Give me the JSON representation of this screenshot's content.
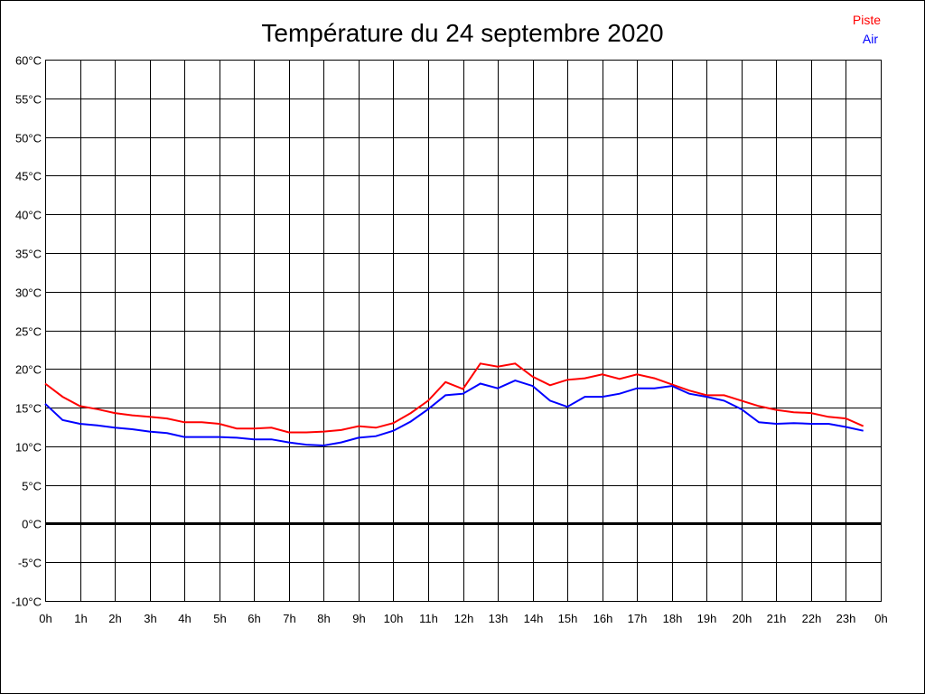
{
  "chart_data": {
    "type": "line",
    "title": "Température du 24 septembre 2020",
    "xlabel": "",
    "ylabel": "",
    "x_tick_labels": [
      "0h",
      "1h",
      "2h",
      "3h",
      "4h",
      "5h",
      "6h",
      "7h",
      "8h",
      "9h",
      "10h",
      "11h",
      "12h",
      "13h",
      "14h",
      "15h",
      "16h",
      "17h",
      "18h",
      "19h",
      "20h",
      "21h",
      "22h",
      "23h",
      "0h"
    ],
    "y_tick_labels": [
      "60°C",
      "55°C",
      "50°C",
      "45°C",
      "40°C",
      "35°C",
      "30°C",
      "25°C",
      "20°C",
      "15°C",
      "10°C",
      "5°C",
      "0°C",
      "-5°C",
      "-10°C"
    ],
    "xlim": [
      0,
      24
    ],
    "ylim": [
      -10,
      60
    ],
    "grid": true,
    "legend_position": "top-right",
    "x": [
      0,
      0.5,
      1,
      1.5,
      2,
      2.5,
      3,
      3.5,
      4,
      4.5,
      5,
      5.5,
      6,
      6.5,
      7,
      7.5,
      8,
      8.5,
      9,
      9.5,
      10,
      10.5,
      11,
      11.5,
      12,
      12.5,
      13,
      13.5,
      14,
      14.5,
      15,
      15.5,
      16,
      16.5,
      17,
      17.5,
      18,
      18.5,
      19,
      19.5,
      20,
      20.5,
      21,
      21.5,
      22,
      22.5,
      23,
      23.5
    ],
    "series": [
      {
        "name": "Piste",
        "color": "#ff0000",
        "values": [
          18.1,
          16.4,
          15.2,
          14.8,
          14.3,
          14.0,
          13.8,
          13.6,
          13.1,
          13.1,
          12.9,
          12.3,
          12.3,
          12.4,
          11.8,
          11.8,
          11.9,
          12.1,
          12.6,
          12.4,
          13.0,
          14.3,
          15.9,
          18.3,
          17.4,
          20.7,
          20.3,
          20.7,
          19.0,
          17.9,
          18.6,
          18.8,
          19.3,
          18.7,
          19.3,
          18.8,
          18.0,
          17.2,
          16.6,
          16.6,
          15.9,
          15.2,
          14.7,
          14.4,
          14.3,
          13.8,
          13.6,
          12.6
        ]
      },
      {
        "name": "Air",
        "color": "#0000ff",
        "values": [
          15.5,
          13.4,
          12.9,
          12.7,
          12.4,
          12.2,
          11.9,
          11.7,
          11.2,
          11.2,
          11.2,
          11.1,
          10.9,
          10.9,
          10.5,
          10.2,
          10.1,
          10.5,
          11.1,
          11.3,
          12.0,
          13.2,
          14.8,
          16.6,
          16.8,
          18.1,
          17.5,
          18.5,
          17.8,
          15.9,
          15.1,
          16.4,
          16.4,
          16.8,
          17.5,
          17.5,
          17.8,
          16.8,
          16.4,
          15.9,
          14.8,
          13.1,
          12.9,
          13.0,
          12.9,
          12.9,
          12.5,
          12.0
        ]
      }
    ]
  }
}
